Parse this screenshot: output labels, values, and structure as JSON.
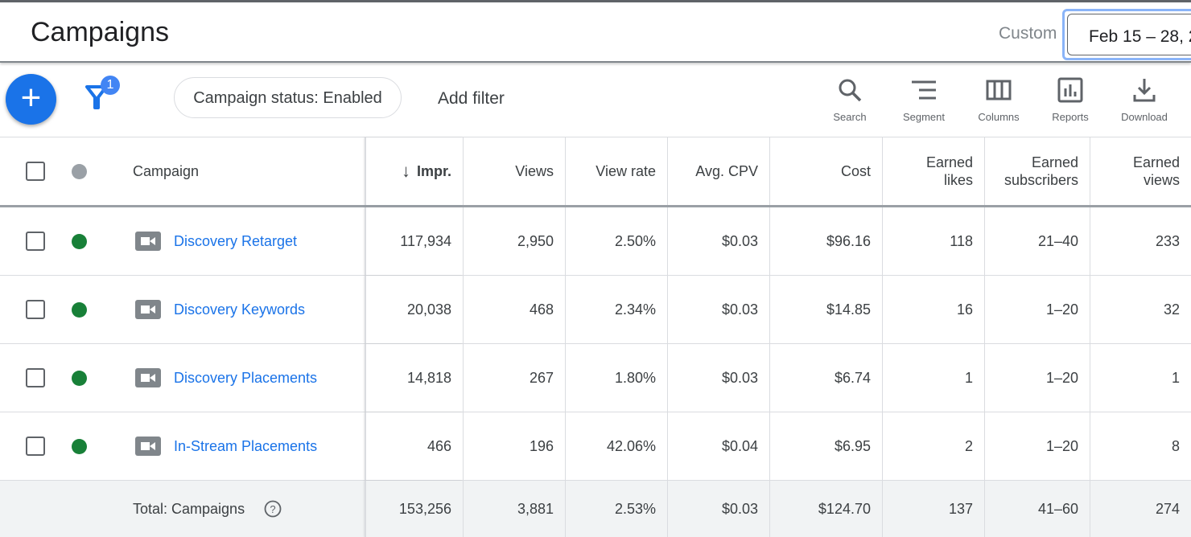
{
  "header": {
    "title": "Campaigns",
    "date_range_label": "Custom",
    "date_range_value": "Feb 15 – 28, 2"
  },
  "toolbar": {
    "filter_count": "1",
    "filter_chip": "Campaign status: Enabled",
    "add_filter": "Add filter",
    "tools": [
      {
        "label": "Search",
        "icon": "search-icon"
      },
      {
        "label": "Segment",
        "icon": "segment-icon"
      },
      {
        "label": "Columns",
        "icon": "columns-icon"
      },
      {
        "label": "Reports",
        "icon": "reports-icon"
      },
      {
        "label": "Download",
        "icon": "download-icon"
      }
    ]
  },
  "colors": {
    "accent": "#1a73e8",
    "enabled": "#188038",
    "status_header": "#9aa0a6"
  },
  "table": {
    "columns": [
      "Campaign",
      "Impr.",
      "Views",
      "View rate",
      "Avg. CPV",
      "Cost",
      "Earned likes",
      "Earned subscribers",
      "Earned views"
    ],
    "sort": {
      "column": "Impr.",
      "direction": "descending"
    },
    "rows": [
      {
        "name": "Discovery Retarget",
        "impr": "117,934",
        "views": "2,950",
        "rate": "2.50%",
        "cpv": "$0.03",
        "cost": "$96.16",
        "likes": "118",
        "subs": "21–40",
        "eviews": "233"
      },
      {
        "name": "Discovery Keywords",
        "impr": "20,038",
        "views": "468",
        "rate": "2.34%",
        "cpv": "$0.03",
        "cost": "$14.85",
        "likes": "16",
        "subs": "1–20",
        "eviews": "32"
      },
      {
        "name": "Discovery Placements",
        "impr": "14,818",
        "views": "267",
        "rate": "1.80%",
        "cpv": "$0.03",
        "cost": "$6.74",
        "likes": "1",
        "subs": "1–20",
        "eviews": "1"
      },
      {
        "name": "In-Stream Placements",
        "impr": "466",
        "views": "196",
        "rate": "42.06%",
        "cpv": "$0.04",
        "cost": "$6.95",
        "likes": "2",
        "subs": "1–20",
        "eviews": "8"
      }
    ],
    "total": {
      "label": "Total: Campaigns",
      "impr": "153,256",
      "views": "3,881",
      "rate": "2.53%",
      "cpv": "$0.03",
      "cost": "$124.70",
      "likes": "137",
      "subs": "41–60",
      "eviews": "274"
    }
  }
}
